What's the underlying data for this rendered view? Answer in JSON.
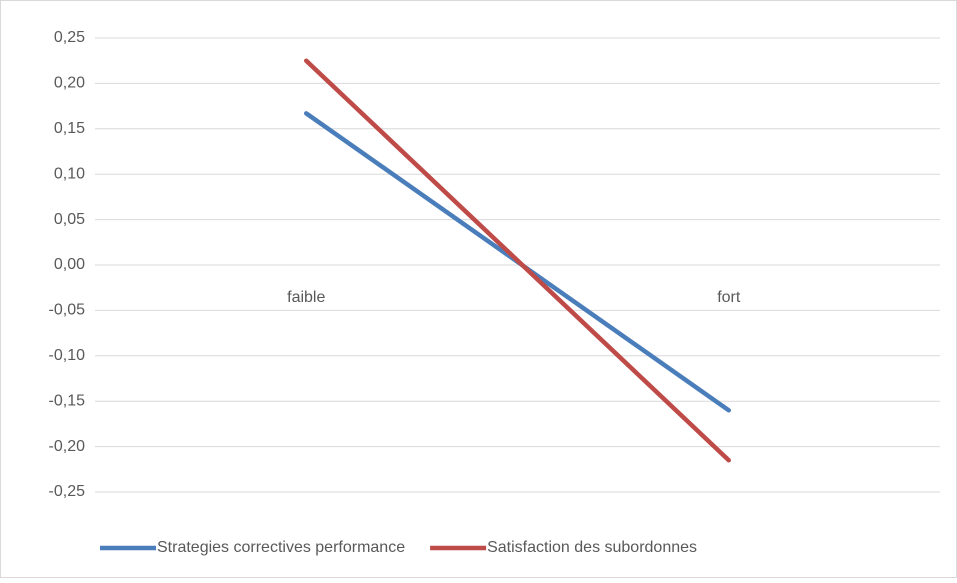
{
  "chart_data": {
    "type": "line",
    "categories": [
      "faible",
      "fort"
    ],
    "series": [
      {
        "name": "Strategies correctives performance",
        "color": "#4a7ebb",
        "values": [
          0.167,
          -0.16
        ]
      },
      {
        "name": "Satisfaction des subordonnes",
        "color": "#be4b48",
        "values": [
          0.225,
          -0.215
        ]
      }
    ],
    "ylim": [
      -0.25,
      0.25
    ],
    "yticks": [
      {
        "value": -0.25,
        "label": "-0,25"
      },
      {
        "value": -0.2,
        "label": "-0,20"
      },
      {
        "value": -0.15,
        "label": "-0,15"
      },
      {
        "value": -0.1,
        "label": "-0,10"
      },
      {
        "value": -0.05,
        "label": "-0,05"
      },
      {
        "value": 0,
        "label": "0,00"
      },
      {
        "value": 0.05,
        "label": "0,05"
      },
      {
        "value": 0.1,
        "label": "0,10"
      },
      {
        "value": 0.15,
        "label": "0,15"
      },
      {
        "value": 0.2,
        "label": "0,20"
      },
      {
        "value": 0.25,
        "label": "0,25"
      }
    ],
    "grid": true,
    "legend": "bottom"
  }
}
